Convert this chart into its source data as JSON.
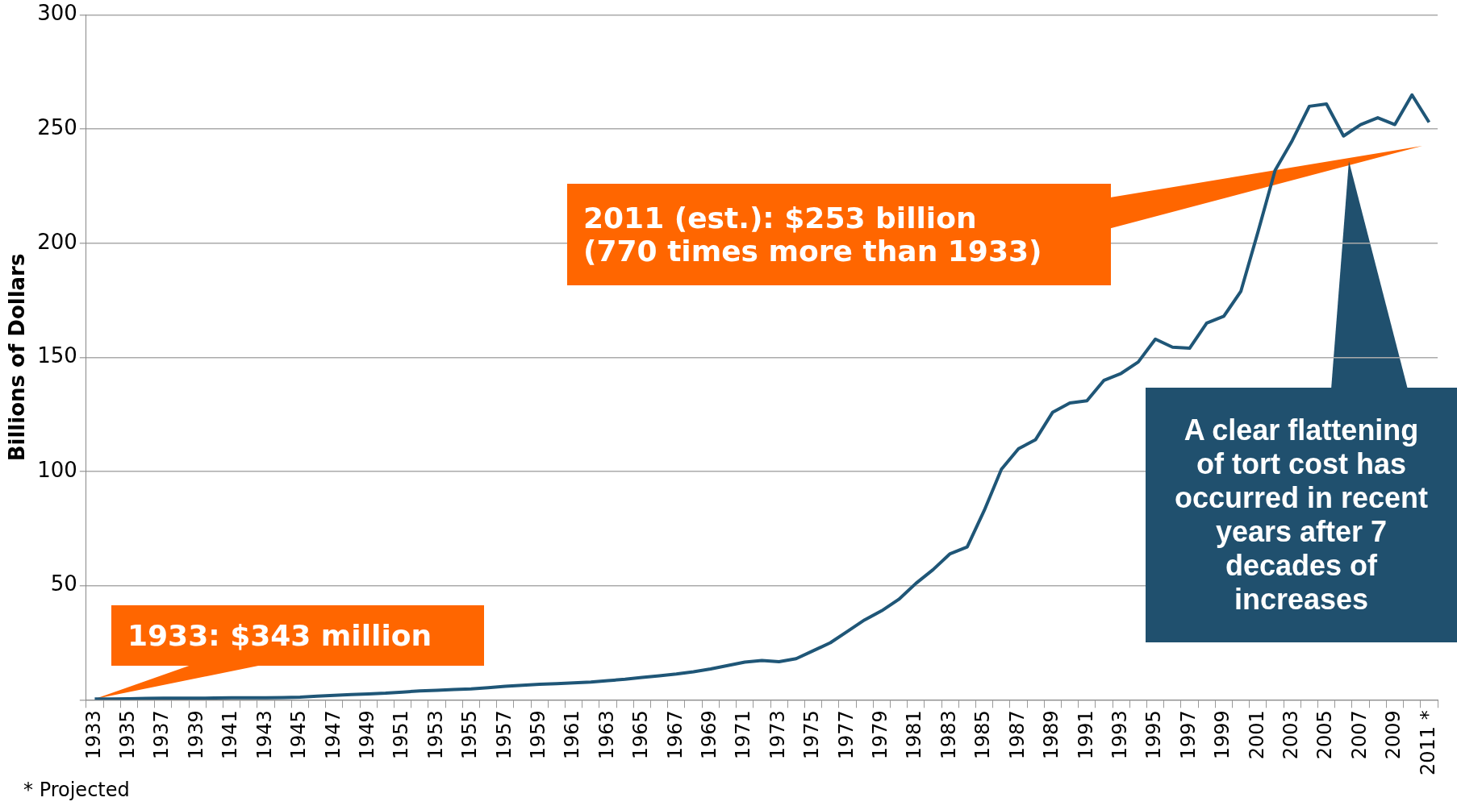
{
  "chart_data": {
    "type": "line",
    "ylabel": "Billions of Dollars",
    "categories": [
      "1933",
      null,
      "1935",
      null,
      "1937",
      null,
      "1939",
      null,
      "1941",
      null,
      "1943",
      null,
      "1945",
      null,
      "1947",
      null,
      "1949",
      null,
      "1951",
      null,
      "1953",
      null,
      "1955",
      null,
      "1957",
      null,
      "1959",
      null,
      "1961",
      null,
      "1963",
      null,
      "1965",
      null,
      "1967",
      null,
      "1969",
      null,
      "1971",
      null,
      "1973",
      null,
      "1975",
      null,
      "1977",
      null,
      "1979",
      null,
      "1981",
      null,
      "1983",
      null,
      "1985",
      null,
      "1987",
      null,
      "1989",
      null,
      "1991",
      null,
      "1993",
      null,
      "1995",
      null,
      "1997",
      null,
      "1999",
      null,
      "2001",
      null,
      "2003",
      null,
      "2005",
      null,
      "2007",
      null,
      "2009",
      null,
      "2011 *"
    ],
    "series": [
      {
        "color": "#1f5677",
        "values": [
          0.343,
          0.4,
          0.5,
          0.6,
          0.7,
          0.7,
          0.7,
          0.8,
          0.9,
          0.9,
          0.9,
          1.0,
          1.2,
          1.6,
          2,
          2.3,
          2.6,
          2.9,
          3.4,
          3.9,
          4.2,
          4.5,
          4.8,
          5.3,
          5.9,
          6.4,
          6.8,
          7.1,
          7.4,
          7.8,
          8.4,
          9,
          9.8,
          10.5,
          11.3,
          12.3,
          13.5,
          15,
          16.5,
          17.2,
          16.7,
          18,
          21.5,
          25,
          30,
          35,
          39,
          44,
          51,
          57,
          64,
          67,
          83,
          101,
          110,
          114,
          126,
          130,
          131,
          140,
          143,
          148,
          158,
          154.5,
          154,
          165,
          168,
          179,
          205,
          232,
          245,
          260,
          261,
          247,
          252,
          255,
          252,
          265,
          253
        ]
      }
    ],
    "ylim": [
      0,
      300
    ],
    "yticks": [
      {
        "value": 0,
        "label": null
      },
      50,
      100,
      150,
      200,
      250,
      300
    ],
    "grid": "y",
    "legend": false,
    "marker": "none",
    "line_style": "solid",
    "annotations": [
      {
        "text": "1933: $343 million",
        "x": "1933",
        "y": 0.343
      },
      "2011 (est.): $253 billion (770 times more than 1933)",
      "A clear flattening of tort cost has occurred in recent years after 7 decades of increases",
      "* Projected"
    ]
  }
}
